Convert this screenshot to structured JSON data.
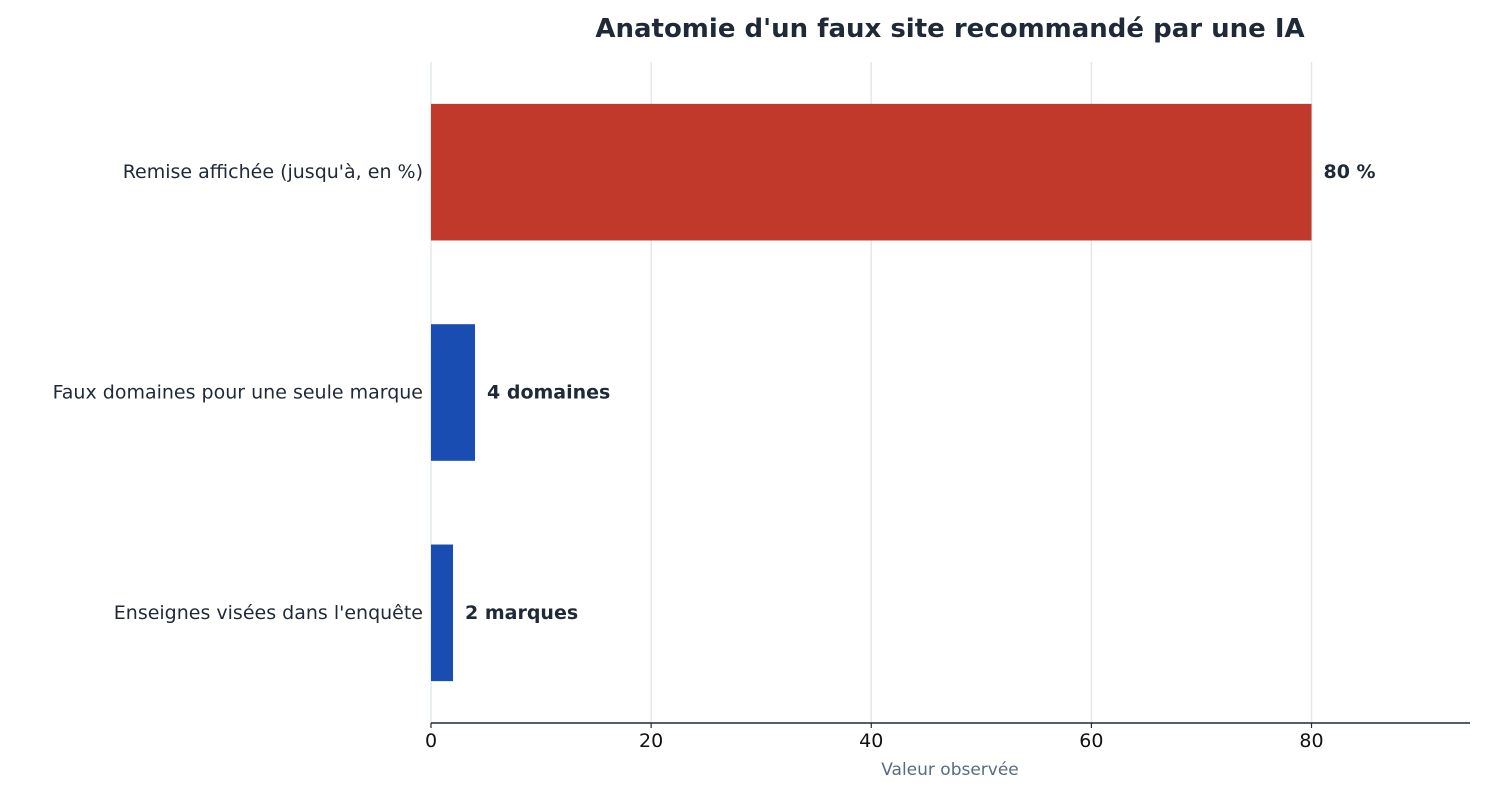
{
  "colors": {
    "highlight": "#c0392b",
    "default": "#1a4db1",
    "text": "#1f2937",
    "axis_title": "#5a6b80",
    "grid": "#e2e8ec",
    "axis": "#1f2937"
  },
  "chart_data": {
    "type": "bar",
    "orientation": "horizontal",
    "title": "Anatomie d'un faux site recommandé par une IA",
    "xlabel": "Valeur observée",
    "ylabel": "",
    "xlim": [
      0,
      94.4
    ],
    "xticks": [
      0,
      20,
      40,
      60,
      80
    ],
    "grid": true,
    "categories": [
      "Remise affichée (jusqu'à, en %)",
      "Faux domaines pour une seule marque",
      "Enseignes visées dans l'enquête"
    ],
    "values": [
      80,
      4,
      2
    ],
    "value_labels": [
      "80 %",
      "4 domaines",
      "2 marques"
    ],
    "bar_colors": [
      "#c0392b",
      "#1a4db1",
      "#1a4db1"
    ]
  }
}
